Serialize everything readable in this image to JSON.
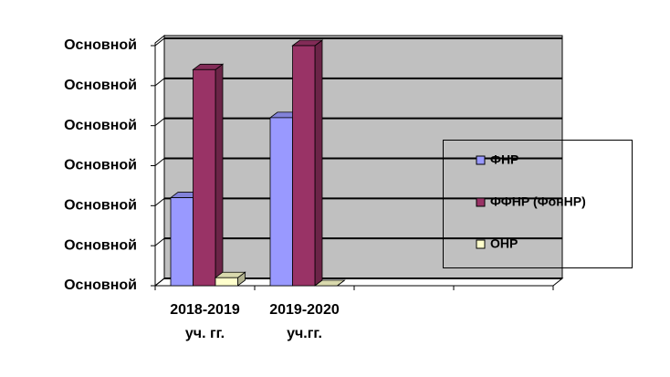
{
  "chart_data": {
    "type": "bar3d",
    "categories": [
      "2018-2019 уч. гг.",
      "2019-2020 уч.гг.",
      null,
      null
    ],
    "series": [
      {
        "name": "ФНР",
        "color": "#9999ff",
        "values": [
          2.2,
          4.2,
          null,
          null
        ]
      },
      {
        "name": "ФФНР (ФонНР)",
        "color": "#993366",
        "values": [
          5.4,
          6.0,
          null,
          null
        ]
      },
      {
        "name": "ОНР",
        "color": "#ffffcc",
        "values": [
          0.2,
          0,
          null,
          null
        ]
      }
    ],
    "ylim": [
      0,
      6
    ],
    "yticks": [
      {
        "value": 0,
        "label": "Основной"
      },
      {
        "value": 1,
        "label": "Основной"
      },
      {
        "value": 2,
        "label": "Основной"
      },
      {
        "value": 3,
        "label": "Основной"
      },
      {
        "value": 4,
        "label": "Основной"
      },
      {
        "value": 5,
        "label": "Основной"
      },
      {
        "value": 6,
        "label": "Основной"
      }
    ],
    "grid": true,
    "wall_color": "#c0c0c0",
    "legend": "right"
  }
}
